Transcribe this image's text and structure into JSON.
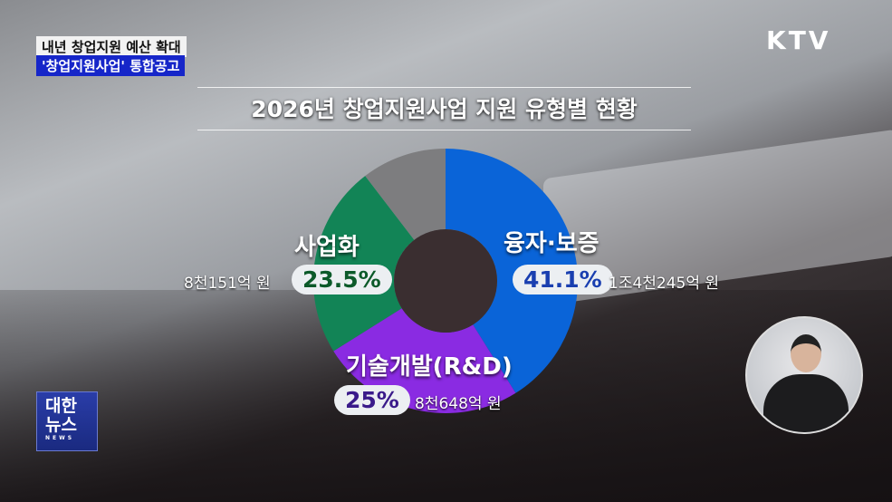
{
  "captions": {
    "line1": "내년 창업지원 예산 확대",
    "line2": "'창업지원사업' 통합공고"
  },
  "channel_logo": "KTV",
  "program_logo": {
    "line1": "대한",
    "line2": "뉴스",
    "line3": "NEWS"
  },
  "chart_data": {
    "type": "pie",
    "variant": "donut",
    "title": "2026년 창업지원사업 지원 유형별 현황",
    "slices": [
      {
        "label": "융자·보증",
        "value": 41.1,
        "value_label": "41.1%",
        "amount": "1조4천245억 원",
        "color": "#0a64d8",
        "text_color": "#1a3fb0"
      },
      {
        "label": "기술개발(R&D)",
        "value": 25,
        "value_label": "25%",
        "amount": "8천648억 원",
        "color": "#8a2be2",
        "text_color": "#3a1a8a"
      },
      {
        "label": "사업화",
        "value": 23.5,
        "value_label": "23.5%",
        "amount": "8천151억 원",
        "color": "#128456",
        "text_color": "#0c5a2a"
      },
      {
        "label": "",
        "value": 10.4,
        "color": "#7d7d7f"
      }
    ],
    "start": "top",
    "direction": "clockwise"
  }
}
